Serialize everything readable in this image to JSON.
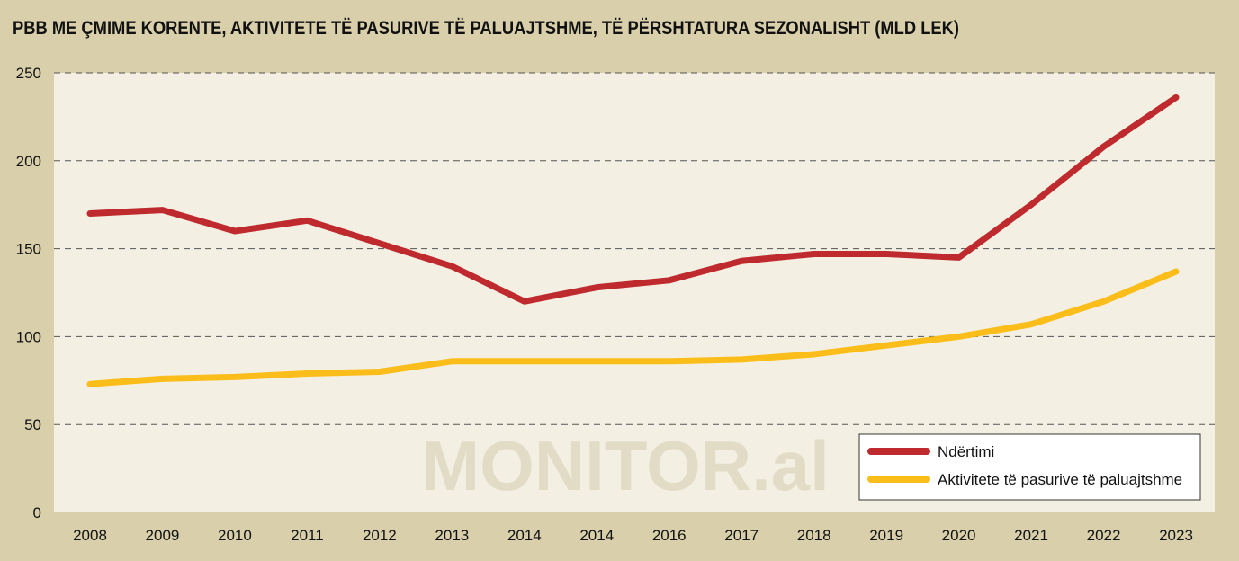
{
  "chart_data": {
    "type": "line",
    "title": "PBB ME ÇMIME KORENTE, AKTIVITETE TË PASURIVE TË PALUAJTSHME, TË PËRSHTATURA SEZONALISHT (MLD LEK)",
    "xlabel": "",
    "ylabel": "",
    "categories": [
      "2008",
      "2009",
      "2010",
      "2011",
      "2012",
      "2013",
      "2014",
      "2014",
      "2016",
      "2017",
      "2018",
      "2019",
      "2020",
      "2021",
      "2022",
      "2023"
    ],
    "yticks": [
      0,
      50,
      100,
      150,
      200,
      250
    ],
    "ylim": [
      0,
      250
    ],
    "grid": true,
    "legend_position": "bottom-right",
    "watermark": "MONITOR.al",
    "series": [
      {
        "name": "Ndërtimi",
        "color": "#be2a2e",
        "values": [
          170,
          172,
          160,
          166,
          153,
          140,
          120,
          128,
          132,
          143,
          147,
          147,
          145,
          175,
          208,
          236
        ]
      },
      {
        "name": "Aktivitete të pasurive të paluajtshme",
        "color": "#fbbd1a",
        "values": [
          73,
          76,
          77,
          79,
          80,
          86,
          86,
          86,
          86,
          87,
          90,
          95,
          100,
          107,
          120,
          137
        ]
      }
    ]
  }
}
